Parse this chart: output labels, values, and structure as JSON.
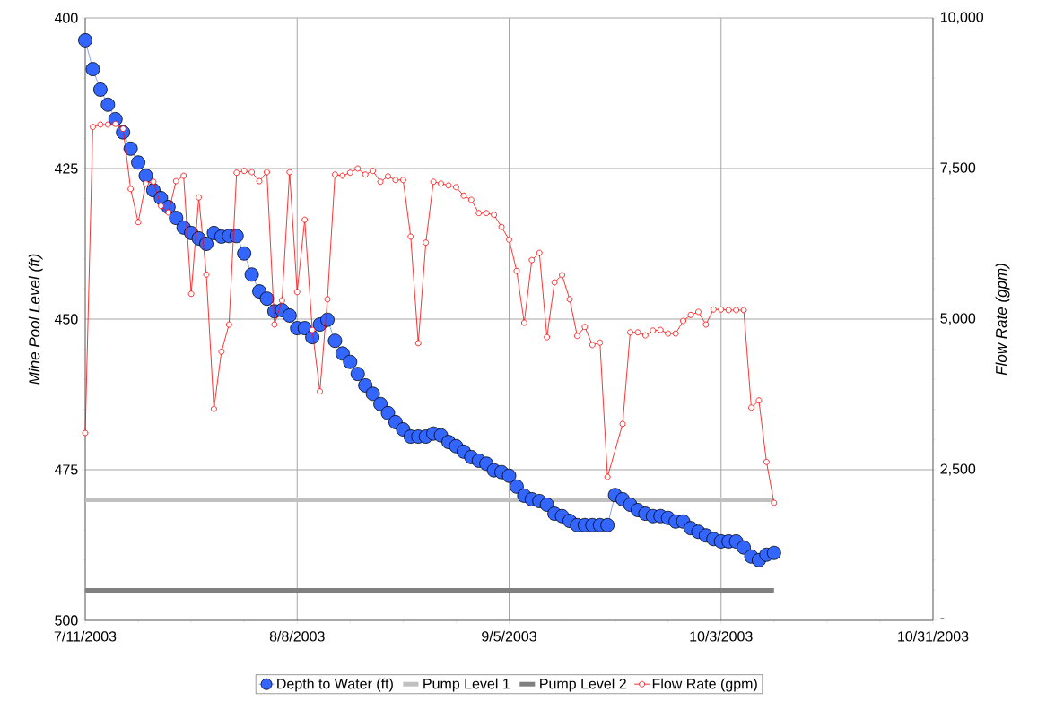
{
  "chart_data": {
    "type": "line",
    "ylabel": "Mine Pool Level (ft)",
    "y2label": "Flow Rate (gpm)",
    "grid": true,
    "legend": "bottom",
    "xlim": [
      "2003-07-11",
      "2003-10-31"
    ],
    "xticks": [
      {
        "value": "2003-07-11",
        "label": "7/11/2003"
      },
      {
        "value": "2003-08-08",
        "label": "8/8/2003"
      },
      {
        "value": "2003-09-05",
        "label": "9/5/2003"
      },
      {
        "value": "2003-10-03",
        "label": "10/3/2003"
      },
      {
        "value": "2003-10-31",
        "label": "10/31/2003"
      }
    ],
    "ylim": [
      500,
      400
    ],
    "yticks": [
      400,
      425,
      450,
      475,
      500
    ],
    "y2lim": [
      0,
      10000
    ],
    "y2ticks": [
      {
        "value": 0,
        "label": "-"
      },
      {
        "value": 2500,
        "label": "2,500"
      },
      {
        "value": 5000,
        "label": "5,000"
      },
      {
        "value": 7500,
        "label": "7,500"
      },
      {
        "value": 10000,
        "label": "10,000"
      }
    ],
    "x": [
      "2003-07-11",
      "2003-07-12",
      "2003-07-13",
      "2003-07-14",
      "2003-07-15",
      "2003-07-16",
      "2003-07-17",
      "2003-07-18",
      "2003-07-19",
      "2003-07-20",
      "2003-07-21",
      "2003-07-22",
      "2003-07-23",
      "2003-07-24",
      "2003-07-25",
      "2003-07-26",
      "2003-07-27",
      "2003-07-28",
      "2003-07-29",
      "2003-07-30",
      "2003-07-31",
      "2003-08-01",
      "2003-08-02",
      "2003-08-03",
      "2003-08-04",
      "2003-08-05",
      "2003-08-06",
      "2003-08-07",
      "2003-08-08",
      "2003-08-09",
      "2003-08-10",
      "2003-08-11",
      "2003-08-12",
      "2003-08-13",
      "2003-08-14",
      "2003-08-15",
      "2003-08-16",
      "2003-08-17",
      "2003-08-18",
      "2003-08-19",
      "2003-08-20",
      "2003-08-21",
      "2003-08-22",
      "2003-08-23",
      "2003-08-24",
      "2003-08-25",
      "2003-08-26",
      "2003-08-27",
      "2003-08-28",
      "2003-08-29",
      "2003-08-30",
      "2003-08-31",
      "2003-09-01",
      "2003-09-02",
      "2003-09-03",
      "2003-09-04",
      "2003-09-05",
      "2003-09-06",
      "2003-09-07",
      "2003-09-08",
      "2003-09-09",
      "2003-09-10",
      "2003-09-11",
      "2003-09-12",
      "2003-09-13",
      "2003-09-14",
      "2003-09-15",
      "2003-09-16",
      "2003-09-17",
      "2003-09-18",
      "2003-09-19",
      "2003-09-20",
      "2003-09-21",
      "2003-09-22",
      "2003-09-23",
      "2003-09-24",
      "2003-09-25",
      "2003-09-26",
      "2003-09-27",
      "2003-09-28",
      "2003-09-29",
      "2003-09-30",
      "2003-10-01",
      "2003-10-02",
      "2003-10-03",
      "2003-10-04",
      "2003-10-05",
      "2003-10-06",
      "2003-10-07",
      "2003-10-08",
      "2003-10-09",
      "2003-10-10"
    ],
    "series": [
      {
        "name": "Depth to Water (ft)",
        "color": "#3366ff",
        "marker": "circle",
        "values": [
          403.7,
          408.5,
          411.9,
          414.4,
          416.8,
          419.0,
          421.7,
          424.0,
          426.2,
          428.6,
          429.9,
          431.4,
          433.2,
          434.8,
          435.7,
          436.6,
          437.5,
          435.7,
          436.3,
          436.2,
          436.2,
          439.1,
          442.6,
          445.4,
          446.6,
          448.7,
          448.5,
          449.4,
          451.5,
          451.5,
          453.0,
          450.9,
          450.1,
          453.6,
          455.7,
          457.1,
          459.1,
          461.0,
          462.4,
          464.1,
          465.6,
          467.1,
          468.3,
          469.5,
          469.5,
          469.5,
          469.0,
          469.3,
          470.4,
          471.1,
          472.0,
          472.9,
          473.5,
          474.0,
          475.1,
          475.4,
          476.0,
          477.8,
          479.3,
          479.9,
          480.2,
          480.8,
          482.3,
          482.7,
          483.5,
          484.2,
          484.2,
          484.2,
          484.2,
          484.2,
          479.2,
          479.9,
          480.8,
          481.7,
          482.3,
          482.7,
          482.7,
          483.0,
          483.6,
          483.6,
          484.7,
          485.3,
          485.9,
          486.5,
          486.9,
          486.9,
          486.9,
          487.9,
          489.4,
          490.0,
          489.1,
          488.8
        ]
      },
      {
        "name": "Pump Level 1",
        "color": "#c0c0c0",
        "marker": "none",
        "x": [
          "2003-07-11",
          "2003-10-10"
        ],
        "values": [
          480,
          480
        ]
      },
      {
        "name": "Pump Level 2",
        "color": "#808080",
        "marker": "none",
        "x": [
          "2003-07-11",
          "2003-10-10"
        ],
        "values": [
          495,
          495
        ]
      },
      {
        "name": "Flow Rate (gpm)",
        "color": "#ff0000",
        "marker": "circle",
        "axis": "y2",
        "x": [
          "2003-07-11",
          "2003-07-12",
          "2003-07-13",
          "2003-07-14",
          "2003-07-15",
          "2003-07-16",
          "2003-07-17",
          "2003-07-18",
          "2003-07-19",
          "2003-07-20",
          "2003-07-21",
          "2003-07-22",
          "2003-07-23",
          "2003-07-24",
          "2003-07-25",
          "2003-07-26",
          "2003-07-27",
          "2003-07-28",
          "2003-07-29",
          "2003-07-30",
          "2003-07-31",
          "2003-08-01",
          "2003-08-02",
          "2003-08-03",
          "2003-08-04",
          "2003-08-05",
          "2003-08-06",
          "2003-08-07",
          "2003-08-08",
          "2003-08-09",
          "2003-08-10",
          "2003-08-11",
          "2003-08-12",
          "2003-08-13",
          "2003-08-14",
          "2003-08-15",
          "2003-08-16",
          "2003-08-17",
          "2003-08-18",
          "2003-08-19",
          "2003-08-20",
          "2003-08-21",
          "2003-08-22",
          "2003-08-23",
          "2003-08-24",
          "2003-08-25",
          "2003-08-26",
          "2003-08-27",
          "2003-08-28",
          "2003-08-29",
          "2003-08-30",
          "2003-08-31",
          "2003-09-01",
          "2003-09-02",
          "2003-09-03",
          "2003-09-04",
          "2003-09-05",
          "2003-09-06",
          "2003-09-07",
          "2003-09-08",
          "2003-09-09",
          "2003-09-10",
          "2003-09-11",
          "2003-09-12",
          "2003-09-13",
          "2003-09-14",
          "2003-09-15",
          "2003-09-16",
          "2003-09-17",
          "2003-09-18",
          "2003-09-20",
          "2003-09-21",
          "2003-09-22",
          "2003-09-23",
          "2003-09-24",
          "2003-09-25",
          "2003-09-26",
          "2003-09-27",
          "2003-09-28",
          "2003-09-29",
          "2003-09-30",
          "2003-10-01",
          "2003-10-02",
          "2003-10-03",
          "2003-10-04",
          "2003-10-05",
          "2003-10-06",
          "2003-10-07",
          "2003-10-08",
          "2003-10-09",
          "2003-10-10"
        ],
        "values": [
          3110,
          8190,
          8230,
          8230,
          8240,
          8160,
          7160,
          6610,
          7250,
          7280,
          6880,
          6770,
          7290,
          7380,
          5420,
          7020,
          5740,
          3510,
          4460,
          4910,
          7430,
          7460,
          7440,
          7290,
          7440,
          4910,
          5310,
          7440,
          5450,
          6650,
          4820,
          3800,
          5330,
          7400,
          7380,
          7430,
          7500,
          7400,
          7460,
          7280,
          7370,
          7310,
          7310,
          6370,
          4600,
          6270,
          7280,
          7250,
          7220,
          7190,
          7050,
          6980,
          6760,
          6760,
          6730,
          6530,
          6320,
          5800,
          4940,
          5980,
          6100,
          4700,
          5610,
          5730,
          5330,
          4720,
          4870,
          4570,
          4610,
          2380,
          3260,
          4780,
          4780,
          4730,
          4810,
          4820,
          4760,
          4760,
          4970,
          5070,
          5120,
          4910,
          5160,
          5160,
          5150,
          5150,
          5150,
          3530,
          3650,
          2630,
          1950
        ]
      }
    ]
  }
}
